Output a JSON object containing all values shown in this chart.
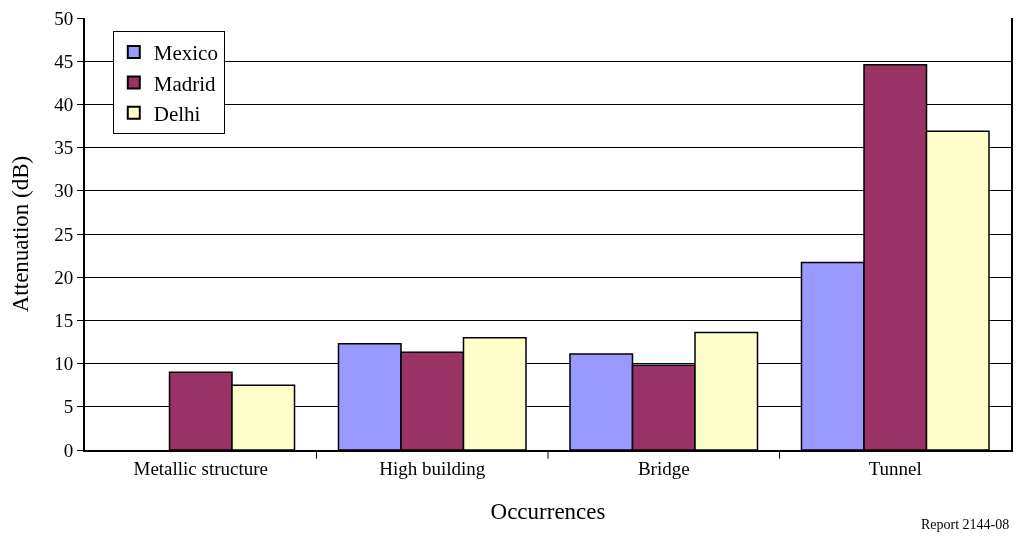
{
  "chart_data": {
    "type": "bar",
    "xlabel": "Occurrences",
    "ylabel": "Attenuation (dB)",
    "categories": [
      "Metallic structure",
      "High building",
      "Bridge",
      "Tunnel"
    ],
    "series": [
      {
        "name": "Mexico",
        "color": "#9999ff",
        "values": [
          null,
          12.3,
          11.1,
          21.7
        ]
      },
      {
        "name": "Madrid",
        "color": "#993366",
        "values": [
          9.0,
          11.3,
          9.8,
          44.6
        ]
      },
      {
        "name": "Delhi",
        "color": "#ffffcc",
        "values": [
          7.5,
          13.0,
          13.6,
          36.9
        ]
      }
    ],
    "ylim": [
      0,
      50
    ],
    "yticks": [
      0,
      5,
      10,
      15,
      20,
      25,
      30,
      35,
      40,
      45,
      50
    ],
    "grid": "y",
    "legend": "top left",
    "annotations": [
      "Report 2144-08"
    ]
  }
}
